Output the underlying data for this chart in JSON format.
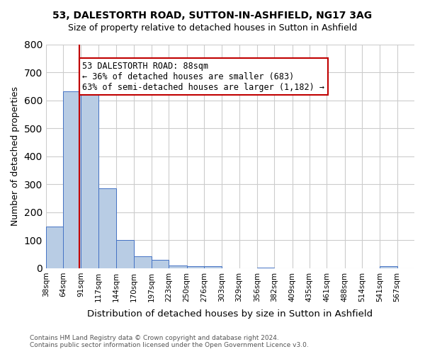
{
  "title": "53, DALESTORTH ROAD, SUTTON-IN-ASHFIELD, NG17 3AG",
  "subtitle": "Size of property relative to detached houses in Sutton in Ashfield",
  "xlabel": "Distribution of detached houses by size in Sutton in Ashfield",
  "ylabel": "Number of detached properties",
  "bar_values": [
    148,
    632,
    625,
    285,
    101,
    44,
    30,
    10,
    7,
    7,
    0,
    0,
    2,
    0,
    0,
    0,
    0,
    0,
    0,
    7
  ],
  "bin_labels": [
    "38sqm",
    "64sqm",
    "91sqm",
    "117sqm",
    "144sqm",
    "170sqm",
    "197sqm",
    "223sqm",
    "250sqm",
    "276sqm",
    "303sqm",
    "329sqm",
    "356sqm",
    "382sqm",
    "409sqm",
    "435sqm",
    "461sqm",
    "488sqm",
    "514sqm",
    "541sqm",
    "567sqm"
  ],
  "bin_edges": [
    38,
    64,
    91,
    117,
    144,
    170,
    197,
    223,
    250,
    276,
    303,
    329,
    356,
    382,
    409,
    435,
    461,
    488,
    514,
    541,
    567
  ],
  "bar_color": "#b8cce4",
  "bar_edge_color": "#4472c4",
  "property_size": 88,
  "vline_color": "#c00000",
  "annotation_text": "53 DALESTORTH ROAD: 88sqm\n← 36% of detached houses are smaller (683)\n63% of semi-detached houses are larger (1,182) →",
  "annotation_box_color": "#ffffff",
  "annotation_border_color": "#c00000",
  "ylim": [
    0,
    800
  ],
  "yticks": [
    0,
    100,
    200,
    300,
    400,
    500,
    600,
    700,
    800
  ],
  "footer_line1": "Contains HM Land Registry data © Crown copyright and database right 2024.",
  "footer_line2": "Contains public sector information licensed under the Open Government Licence v3.0.",
  "bg_color": "#ffffff",
  "grid_color": "#cccccc"
}
